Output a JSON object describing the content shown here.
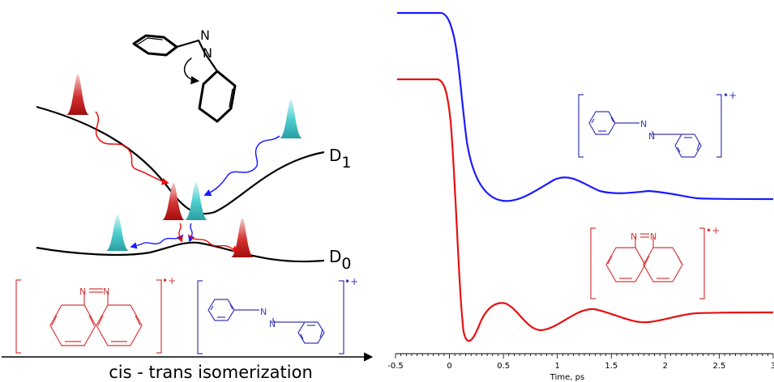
{
  "labels": {
    "d1": "D",
    "d1_sub": "1",
    "d0": "D",
    "d0_sub": "0",
    "n_atom": "N",
    "radical_cation": "•+",
    "caption": "cis - trans isomerization"
  },
  "chart_data": {
    "type": "line",
    "xlabel": "Time, ps",
    "xlim": [
      -0.5,
      3
    ],
    "x_ticks": [
      "-0.5",
      "0",
      "0.5",
      "1",
      "1.5",
      "2",
      "2.5",
      "3"
    ],
    "series": [
      {
        "color": "#1a1aff",
        "role": "trans-azobenzene radical cation"
      },
      {
        "color": "#e81010",
        "role": "cis-azobenzene radical cation"
      }
    ]
  },
  "colors": {
    "red": "#e81010",
    "blue": "#1a1aff",
    "struct_red": "#d83a3a",
    "struct_blue": "#3a3ab8",
    "cyan": "#39c4c4"
  }
}
